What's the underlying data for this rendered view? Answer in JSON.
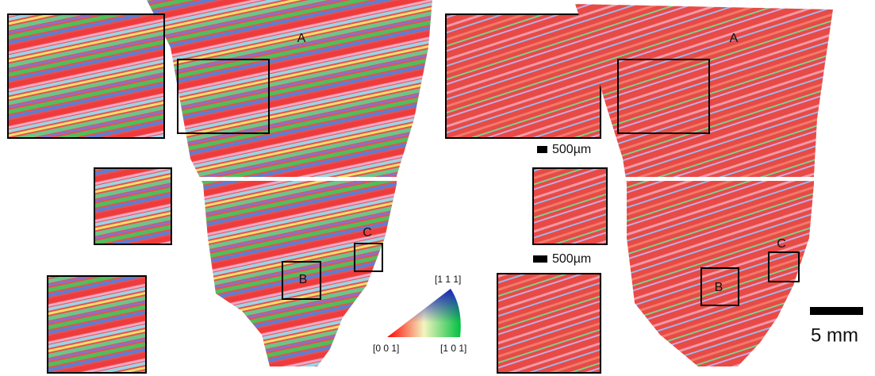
{
  "left_map": {
    "labels": [
      "A",
      "B",
      "C"
    ]
  },
  "right_map": {
    "labels": [
      "A",
      "B",
      "C"
    ]
  },
  "scale_bars": [
    "500µm",
    "500µm",
    "5 mm"
  ],
  "ipf_key": {
    "top": "[1 1 1]",
    "left": "[0 0 1]",
    "right": "[1 0 1]"
  }
}
